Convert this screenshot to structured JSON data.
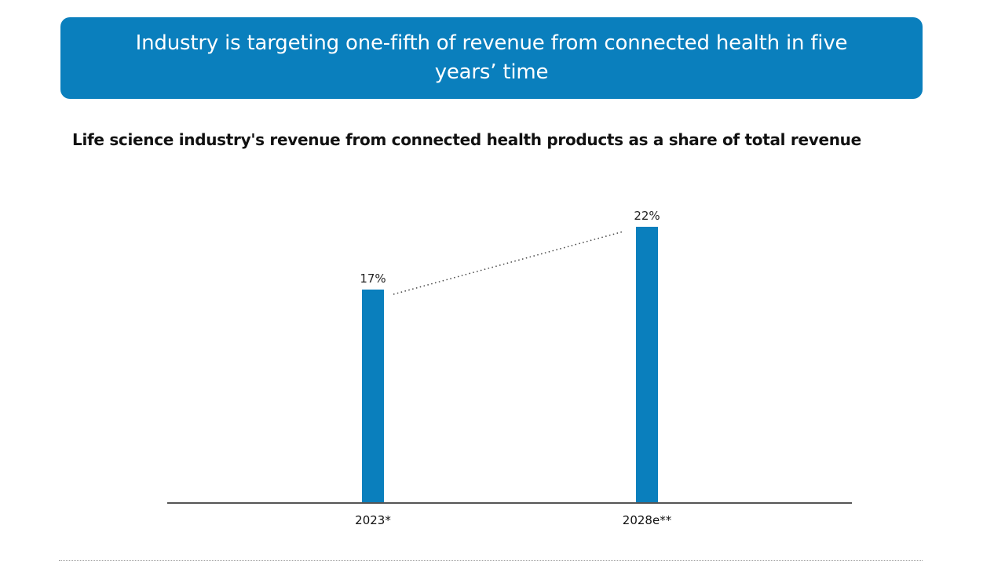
{
  "banner": {
    "title": "Industry is targeting one-fifth of revenue from connected health in five years’ time"
  },
  "colors": {
    "accent": "#0a7fbd",
    "bar": "#0a7fbd",
    "axis": "#555555",
    "trend": "#444444"
  },
  "chart_data": {
    "type": "bar",
    "title": "Life science industry's revenue from connected health products as a share of total revenue",
    "categories": [
      "2023*",
      "2028e**"
    ],
    "values": [
      17,
      22
    ],
    "value_labels": [
      "17%",
      "22%"
    ],
    "unit": "%",
    "xlabel": "",
    "ylabel": "",
    "ylim": [
      0,
      25
    ],
    "grid": false,
    "legend": "none",
    "annotations": [
      "dotted trend line connecting 2023* bar to 2028e** bar"
    ]
  }
}
